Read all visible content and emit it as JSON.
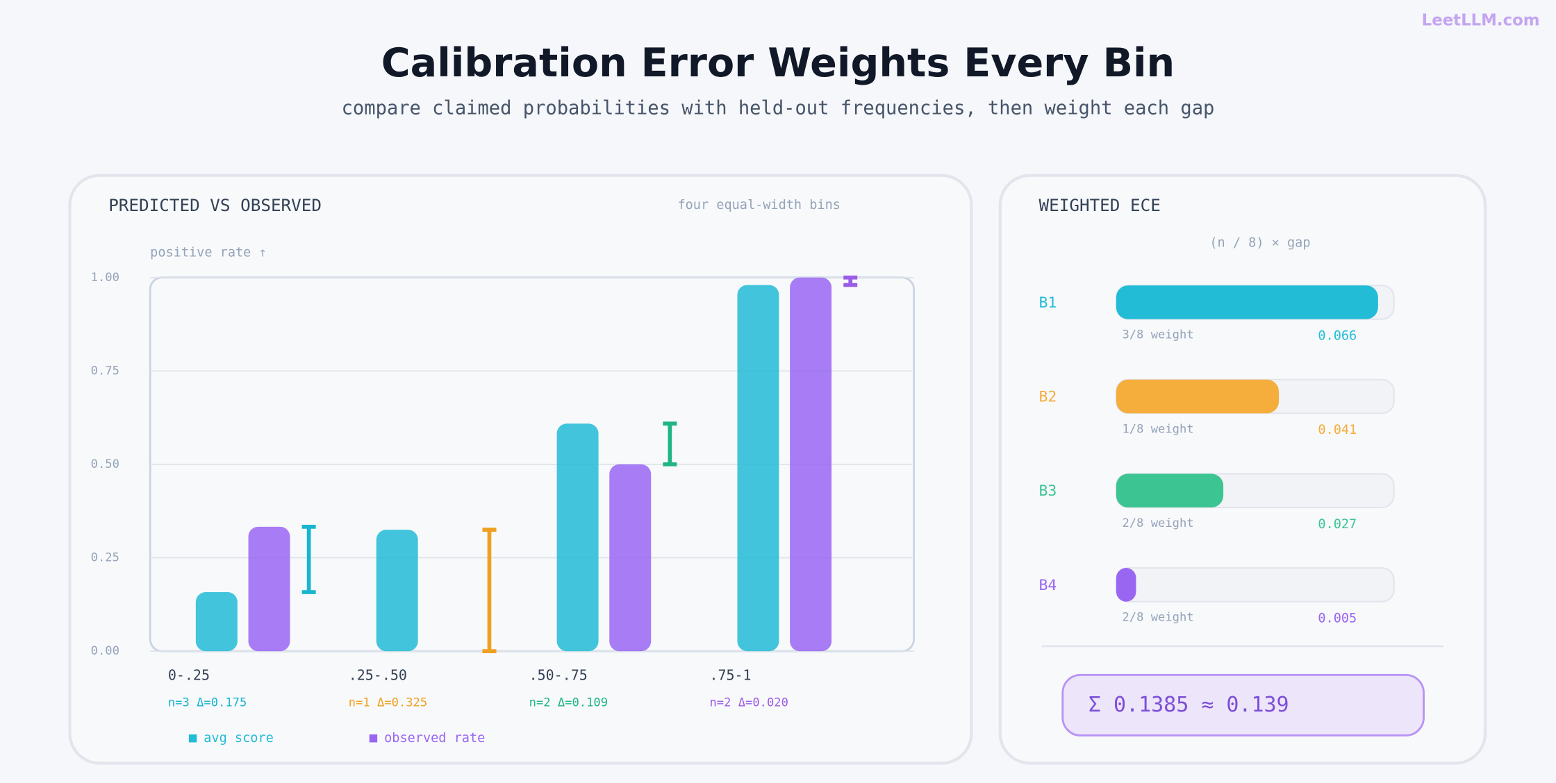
{
  "header": {
    "title": "Calibration Error Weights Every Bin",
    "subtitle": "compare claimed probabilities with held-out frequencies, then weight each gap",
    "logo": "LeetLLM.com"
  },
  "chart_data": [
    {
      "type": "bar",
      "title": "PREDICTED VS OBSERVED",
      "subtitle": "four equal-width bins",
      "y_label": "positive rate ↑",
      "categories": [
        "0-.25",
        ".25-.50",
        ".50-.75",
        ".75-1"
      ],
      "bin_labels": [
        "n=3 Δ=0.175",
        "n=1 Δ=0.325",
        "n=2 Δ=0.109",
        "n=2 Δ=0.020"
      ],
      "bin_colors": [
        "#17b5cf",
        "#f0a020",
        "#1fb585",
        "#9b5de5"
      ],
      "series": [
        {
          "name": "avg score",
          "color": "#22bcd6",
          "values": [
            0.158,
            0.325,
            0.609,
            0.98
          ]
        },
        {
          "name": "observed rate",
          "color": "#9966f2",
          "values": [
            0.333,
            0,
            0.5,
            1.0
          ]
        }
      ],
      "ylim": [
        0,
        1
      ],
      "yticks": [
        {
          "value": 0,
          "label": "0.00"
        },
        {
          "value": 0.25,
          "label": "0.25"
        },
        {
          "value": 0.5,
          "label": "0.50"
        },
        {
          "value": 0.75,
          "label": "0.75"
        },
        {
          "value": 1,
          "label": "1.00"
        }
      ],
      "grid": true
    },
    {
      "type": "hbar",
      "title": "WEIGHTED ECE",
      "subtitle": "(n / 8) × gap",
      "categories": [
        "B1",
        "B2",
        "B3",
        "B4"
      ],
      "weight_labels": [
        "3/8 weight",
        "1/8 weight",
        "2/8 weight",
        "2/8 weight"
      ],
      "values": [
        0.066,
        0.041,
        0.027,
        0.005
      ],
      "colors": [
        "#22bcd6",
        "#f5ad3c",
        "#3cc493",
        "#9966f2"
      ],
      "xlim": [
        0,
        0.07
      ],
      "total_label": "Σ 0.1385 ≈ 0.139"
    }
  ]
}
